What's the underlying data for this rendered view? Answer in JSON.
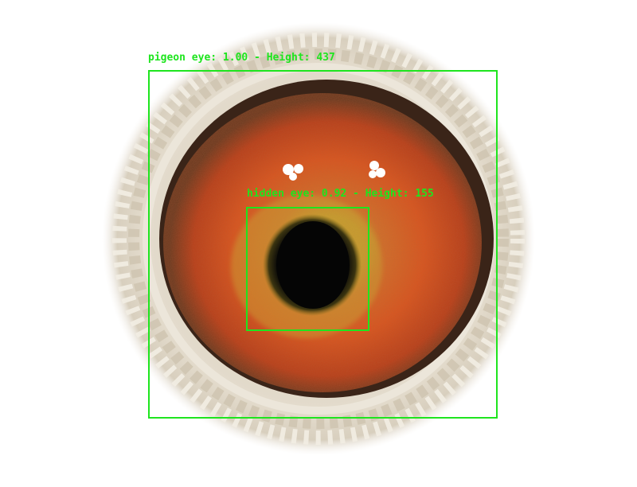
{
  "image": {
    "subject": "pigeon eye close-up",
    "background_color": "#ffffff"
  },
  "detections": {
    "pigeon_eye": {
      "label": "pigeon eye: 1.00 - Height: 437",
      "color": "#1ee51e"
    },
    "hidden_eye": {
      "label": "hidden eye: 0.92 - Height: 155",
      "color": "#1ee51e"
    }
  },
  "colors": {
    "iris_outer": "#b2361a",
    "iris_mid": "#d9561f",
    "iris_inner": "#c9a030",
    "pupil": "#050505",
    "cere_ring": "#d8d0c0",
    "eyelid_dark": "#3a2418"
  }
}
